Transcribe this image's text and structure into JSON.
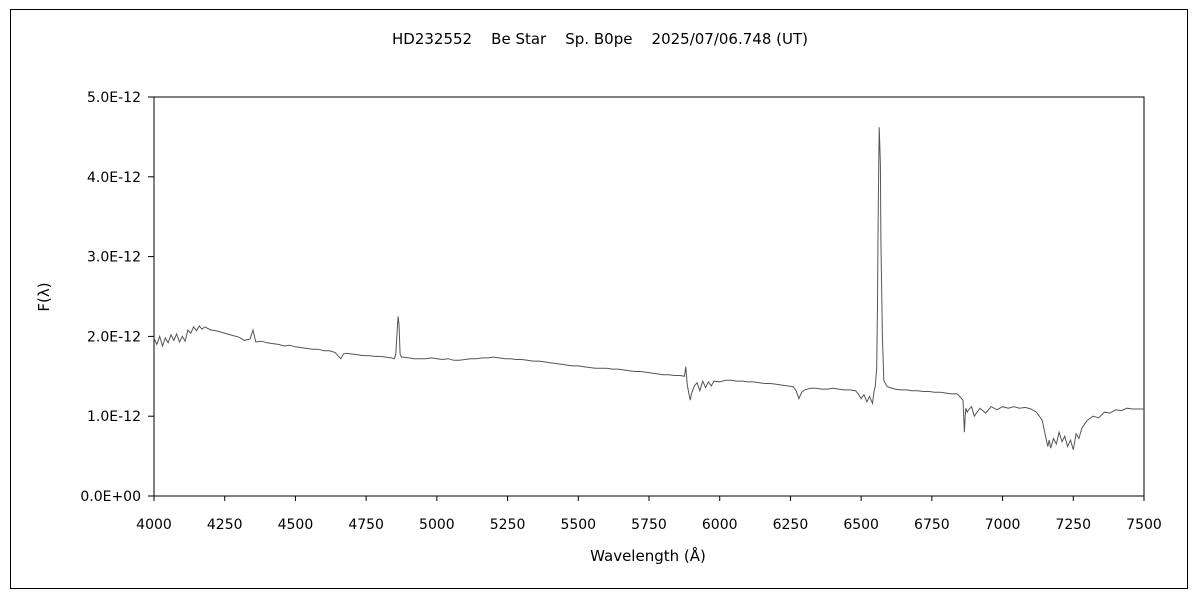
{
  "chart_data": {
    "type": "line",
    "title": "HD232552    Be Star    Sp. B0pe    2025/07/06.748 (UT)",
    "xlabel": "Wavelength (Å)",
    "ylabel": "F(λ)",
    "xlim": [
      4000,
      7500
    ],
    "ylim": [
      0,
      5e-12
    ],
    "xticks": [
      4000,
      4250,
      4500,
      4750,
      5000,
      5250,
      5500,
      5750,
      6000,
      6250,
      6500,
      6750,
      7000,
      7250,
      7500
    ],
    "xtick_labels": [
      "4000",
      "4250",
      "4500",
      "4750",
      "5000",
      "5250",
      "5500",
      "5750",
      "6000",
      "6250",
      "6500",
      "6750",
      "7000",
      "7250",
      "7500"
    ],
    "yticks": [
      0,
      1e-12,
      2e-12,
      3e-12,
      4e-12,
      5e-12
    ],
    "ytick_labels": [
      "0.0E+00",
      "1.0E-12",
      "2.0E-12",
      "3.0E-12",
      "4.0E-12",
      "5.0E-12"
    ],
    "grid": false,
    "legend": "none",
    "line_color": "#555555",
    "series": [
      {
        "x": [
          4000,
          4010,
          4020,
          4030,
          4040,
          4050,
          4060,
          4070,
          4080,
          4090,
          4100,
          4110,
          4120,
          4130,
          4140,
          4150,
          4160,
          4170,
          4180,
          4190,
          4200,
          4220,
          4240,
          4260,
          4280,
          4300,
          4320,
          4340,
          4350,
          4360,
          4380,
          4400,
          4420,
          4440,
          4460,
          4480,
          4500,
          4520,
          4540,
          4560,
          4580,
          4600,
          4620,
          4640,
          4660,
          4670,
          4680,
          4700,
          4720,
          4740,
          4760,
          4780,
          4800,
          4820,
          4840,
          4850,
          4855,
          4860,
          4863,
          4866,
          4870,
          4875,
          4880,
          4900,
          4920,
          4940,
          4960,
          4980,
          5000,
          5020,
          5040,
          5060,
          5080,
          5100,
          5120,
          5140,
          5160,
          5180,
          5200,
          5220,
          5240,
          5260,
          5280,
          5300,
          5320,
          5340,
          5360,
          5380,
          5400,
          5420,
          5440,
          5460,
          5480,
          5500,
          5520,
          5540,
          5560,
          5580,
          5600,
          5620,
          5640,
          5660,
          5680,
          5700,
          5720,
          5740,
          5760,
          5780,
          5800,
          5820,
          5840,
          5860,
          5875,
          5880,
          5885,
          5890,
          5896,
          5900,
          5910,
          5920,
          5930,
          5940,
          5950,
          5960,
          5970,
          5980,
          6000,
          6020,
          6040,
          6060,
          6080,
          6100,
          6120,
          6140,
          6160,
          6180,
          6200,
          6220,
          6240,
          6260,
          6270,
          6280,
          6290,
          6300,
          6320,
          6340,
          6360,
          6380,
          6400,
          6420,
          6440,
          6460,
          6480,
          6490,
          6500,
          6510,
          6520,
          6530,
          6540,
          6545,
          6550,
          6555,
          6558,
          6560,
          6562,
          6564,
          6566,
          6568,
          6570,
          6575,
          6580,
          6590,
          6600,
          6620,
          6640,
          6660,
          6680,
          6700,
          6720,
          6740,
          6760,
          6780,
          6800,
          6820,
          6840,
          6860,
          6865,
          6868,
          6870,
          6875,
          6880,
          6890,
          6900,
          6920,
          6940,
          6960,
          6980,
          7000,
          7020,
          7040,
          7060,
          7080,
          7100,
          7120,
          7140,
          7150,
          7160,
          7165,
          7170,
          7180,
          7190,
          7200,
          7210,
          7220,
          7230,
          7240,
          7250,
          7260,
          7270,
          7280,
          7290,
          7300,
          7320,
          7340,
          7360,
          7380,
          7400,
          7420,
          7440,
          7460,
          7480,
          7500
        ],
        "y": [
          1.98e-12,
          1.9e-12,
          2e-12,
          1.88e-12,
          1.98e-12,
          1.92e-12,
          2.02e-12,
          1.95e-12,
          2.03e-12,
          1.93e-12,
          2e-12,
          1.94e-12,
          2.08e-12,
          2.04e-12,
          2.12e-12,
          2.07e-12,
          2.13e-12,
          2.09e-12,
          2.12e-12,
          2.1e-12,
          2.08e-12,
          2.07e-12,
          2.05e-12,
          2.03e-12,
          2.01e-12,
          1.99e-12,
          1.95e-12,
          1.97e-12,
          2.08e-12,
          1.93e-12,
          1.94e-12,
          1.92e-12,
          1.91e-12,
          1.9e-12,
          1.88e-12,
          1.89e-12,
          1.87e-12,
          1.86e-12,
          1.85e-12,
          1.84e-12,
          1.84e-12,
          1.82e-12,
          1.82e-12,
          1.8e-12,
          1.72e-12,
          1.78e-12,
          1.79e-12,
          1.78e-12,
          1.77e-12,
          1.76e-12,
          1.76e-12,
          1.75e-12,
          1.75e-12,
          1.74e-12,
          1.73e-12,
          1.72e-12,
          1.78e-12,
          2.1e-12,
          2.25e-12,
          2.15e-12,
          1.78e-12,
          1.74e-12,
          1.74e-12,
          1.73e-12,
          1.72e-12,
          1.72e-12,
          1.72e-12,
          1.73e-12,
          1.72e-12,
          1.71e-12,
          1.72e-12,
          1.7e-12,
          1.7e-12,
          1.71e-12,
          1.72e-12,
          1.72e-12,
          1.73e-12,
          1.73e-12,
          1.74e-12,
          1.73e-12,
          1.72e-12,
          1.72e-12,
          1.71e-12,
          1.71e-12,
          1.7e-12,
          1.69e-12,
          1.69e-12,
          1.68e-12,
          1.67e-12,
          1.66e-12,
          1.65e-12,
          1.64e-12,
          1.63e-12,
          1.63e-12,
          1.62e-12,
          1.61e-12,
          1.6e-12,
          1.6e-12,
          1.6e-12,
          1.59e-12,
          1.59e-12,
          1.58e-12,
          1.57e-12,
          1.56e-12,
          1.56e-12,
          1.55e-12,
          1.54e-12,
          1.53e-12,
          1.52e-12,
          1.52e-12,
          1.51e-12,
          1.51e-12,
          1.5e-12,
          1.62e-12,
          1.4e-12,
          1.3e-12,
          1.2e-12,
          1.28e-12,
          1.38e-12,
          1.42e-12,
          1.32e-12,
          1.44e-12,
          1.36e-12,
          1.43e-12,
          1.38e-12,
          1.44e-12,
          1.43e-12,
          1.45e-12,
          1.45e-12,
          1.44e-12,
          1.44e-12,
          1.43e-12,
          1.43e-12,
          1.42e-12,
          1.41e-12,
          1.41e-12,
          1.4e-12,
          1.39e-12,
          1.38e-12,
          1.37e-12,
          1.32e-12,
          1.22e-12,
          1.3e-12,
          1.33e-12,
          1.35e-12,
          1.35e-12,
          1.34e-12,
          1.34e-12,
          1.35e-12,
          1.34e-12,
          1.33e-12,
          1.33e-12,
          1.32e-12,
          1.28e-12,
          1.22e-12,
          1.27e-12,
          1.18e-12,
          1.25e-12,
          1.16e-12,
          1.3e-12,
          1.38e-12,
          1.6e-12,
          2.4e-12,
          3.4e-12,
          4.1e-12,
          4.62e-12,
          4.4e-12,
          4.15e-12,
          3.2e-12,
          2e-12,
          1.45e-12,
          1.38e-12,
          1.36e-12,
          1.34e-12,
          1.33e-12,
          1.33e-12,
          1.32e-12,
          1.32e-12,
          1.31e-12,
          1.31e-12,
          1.3e-12,
          1.3e-12,
          1.29e-12,
          1.28e-12,
          1.28e-12,
          1.2e-12,
          8e-13,
          1e-12,
          1.1e-12,
          1.05e-12,
          1.08e-12,
          1.12e-12,
          1e-12,
          1.1e-12,
          1.04e-12,
          1.12e-12,
          1.08e-12,
          1.12e-12,
          1.1e-12,
          1.12e-12,
          1.1e-12,
          1.11e-12,
          1.09e-12,
          1.05e-12,
          9.5e-13,
          7.8e-13,
          6.2e-13,
          7e-13,
          6e-13,
          7.2e-13,
          6.5e-13,
          8e-13,
          6.8e-13,
          7.5e-13,
          6.2e-13,
          7e-13,
          5.8e-13,
          7.8e-13,
          7.2e-13,
          8.5e-13,
          9e-13,
          9.5e-13,
          1e-12,
          9.8e-13,
          1.05e-12,
          1.04e-12,
          1.08e-12,
          1.07e-12,
          1.1e-12,
          1.09e-12,
          1.09e-12,
          1.09e-12
        ]
      }
    ]
  }
}
